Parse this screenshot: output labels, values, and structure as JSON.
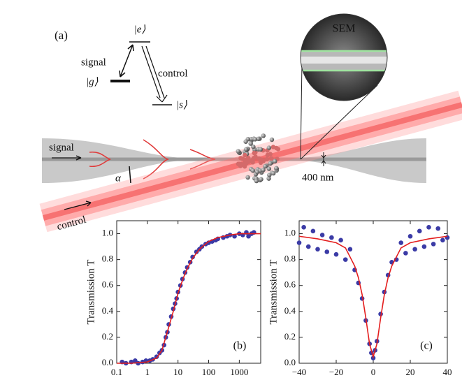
{
  "figure": {
    "panel_label": "(a)",
    "level_e": "|e⟩",
    "level_g": "|g⟩",
    "level_s": "|s⟩",
    "transition_signal": "signal",
    "transition_control": "control",
    "sem_label": "SEM",
    "fiber_signal": "signal",
    "angle": "α",
    "diameter": "400 nm",
    "beam_control": "control"
  },
  "chart_data": [
    {
      "type": "scatter",
      "panel_label": "(b)",
      "y_label": "Transmission T",
      "log_x": true,
      "xlim": [
        0.1,
        5000
      ],
      "ylim": [
        0,
        1.1
      ],
      "xticks": [
        0.1,
        1,
        10,
        100,
        1000
      ],
      "yticks": [
        {
          "value": 0,
          "label": "0.0"
        },
        0.2,
        0.4,
        0.6,
        0.8,
        {
          "value": 1,
          "label": "1.0"
        }
      ],
      "series": [
        {
          "color": "#3b3ba6",
          "mode": "markers",
          "x": [
            0.15,
            0.2,
            0.3,
            0.4,
            0.5,
            0.7,
            0.9,
            1.2,
            1.5,
            2,
            2.5,
            3,
            3.5,
            4,
            4.5,
            5,
            6,
            7,
            8,
            9,
            10,
            12,
            14,
            17,
            20,
            25,
            30,
            40,
            50,
            60,
            80,
            100,
            130,
            170,
            200,
            300,
            400,
            500,
            700,
            1000,
            1300,
            1700,
            2000,
            2500,
            3000
          ],
          "values": [
            0.01,
            0,
            0.01,
            0.02,
            0,
            0.01,
            0.02,
            0.02,
            0.03,
            0.05,
            0.08,
            0.1,
            0.14,
            0.2,
            0.24,
            0.3,
            0.36,
            0.42,
            0.46,
            0.5,
            0.55,
            0.6,
            0.65,
            0.7,
            0.74,
            0.78,
            0.82,
            0.86,
            0.88,
            0.9,
            0.92,
            0.93,
            0.94,
            0.95,
            0.96,
            0.97,
            0.98,
            0.99,
            0.98,
            1.0,
            0.99,
            1.01,
            0.98,
            1.0,
            1.01
          ]
        },
        {
          "color": "#e41e1e",
          "mode": "line",
          "x": [
            0.1,
            0.3,
            1,
            2,
            3,
            5,
            7,
            10,
            15,
            20,
            30,
            50,
            100,
            200,
            500,
            1000,
            5000
          ],
          "values": [
            0,
            0,
            0.01,
            0.04,
            0.1,
            0.28,
            0.4,
            0.54,
            0.66,
            0.73,
            0.81,
            0.88,
            0.94,
            0.97,
            0.99,
            1.0,
            1.0
          ]
        }
      ]
    },
    {
      "type": "scatter",
      "panel_label": "(c)",
      "y_label": "Transmission T",
      "log_x": false,
      "xlim": [
        -40,
        40
      ],
      "ylim": [
        0,
        1.1
      ],
      "xticks": [
        {
          "value": -40,
          "label": "−40"
        },
        {
          "value": -20,
          "label": "−20"
        },
        0,
        20,
        40
      ],
      "yticks": [
        {
          "value": 0,
          "label": "0.0"
        },
        0.2,
        0.4,
        0.6,
        0.8,
        {
          "value": 1,
          "label": "1.0"
        }
      ],
      "series": [
        {
          "color": "#3b3ba6",
          "mode": "markers",
          "x": [
            -40,
            -37.5,
            -35,
            -32.5,
            -30,
            -27.5,
            -25,
            -22.5,
            -20,
            -17.5,
            -15,
            -12.5,
            -10,
            -8,
            -6,
            -4,
            -2,
            -1,
            0,
            1,
            2,
            4,
            6,
            8,
            10,
            12.5,
            15,
            17.5,
            20,
            22.5,
            25,
            27.5,
            30,
            32.5,
            35,
            37.5,
            40
          ],
          "values": [
            0.93,
            1.05,
            0.9,
            1.02,
            0.88,
            0.99,
            0.86,
            0.97,
            0.84,
            0.95,
            0.8,
            0.88,
            0.72,
            0.62,
            0.5,
            0.33,
            0.15,
            0.08,
            0.04,
            0.1,
            0.17,
            0.38,
            0.55,
            0.68,
            0.78,
            0.8,
            0.93,
            0.85,
            0.98,
            0.88,
            1.02,
            0.9,
            1.05,
            0.92,
            1.04,
            0.95,
            0.97
          ]
        },
        {
          "color": "#e41e1e",
          "mode": "line",
          "x": [
            -40,
            -30,
            -20,
            -15,
            -10,
            -8,
            -6,
            -4,
            -2,
            0,
            2,
            4,
            6,
            8,
            10,
            15,
            20,
            30,
            40
          ],
          "values": [
            0.98,
            0.96,
            0.93,
            0.89,
            0.75,
            0.66,
            0.53,
            0.35,
            0.15,
            0.05,
            0.15,
            0.35,
            0.53,
            0.66,
            0.75,
            0.89,
            0.93,
            0.96,
            0.98
          ]
        }
      ]
    }
  ]
}
